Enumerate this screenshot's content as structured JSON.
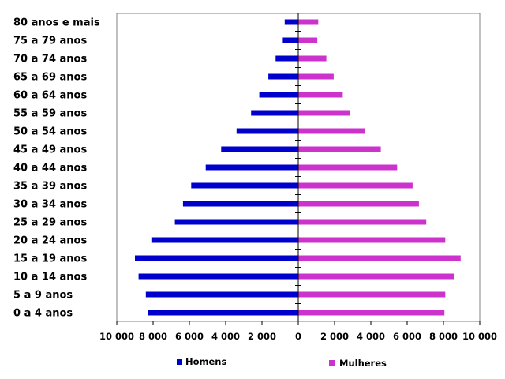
{
  "chart_data": {
    "type": "bar",
    "orientation": "horizontal-pyramid",
    "categories": [
      "0 a 4 anos",
      "5 a 9  anos",
      "10 a 14 anos",
      "15 a 19 anos",
      "20 a 24  anos",
      "25 a 29 anos",
      "30 a 34 anos",
      "35 a 39  anos",
      "40 a 44 anos",
      "45 a 49 anos",
      "50 a 54 anos",
      "55 a 59 anos",
      "60 a 64 anos",
      "65 a 69 anos",
      "70 a 74 anos",
      "75 a 79 anos",
      "80 anos e mais"
    ],
    "series": [
      {
        "name": "Homens",
        "color": "#0000cc",
        "side": "left",
        "values": [
          8300,
          8400,
          8800,
          9000,
          8050,
          6800,
          6350,
          5900,
          5100,
          4250,
          3400,
          2600,
          2150,
          1650,
          1250,
          850,
          750
        ]
      },
      {
        "name": "Mulheres",
        "color": "#cc33cc",
        "side": "right",
        "values": [
          8050,
          8100,
          8600,
          8950,
          8100,
          7050,
          6650,
          6300,
          5450,
          4550,
          3650,
          2850,
          2450,
          1950,
          1550,
          1050,
          1100
        ]
      }
    ],
    "xlim": [
      -10000,
      10000
    ],
    "x_ticks": [
      "10 000",
      "8 000",
      "6 000",
      "4 000",
      "2 000",
      "0",
      "2 000",
      "4 000",
      "6 000",
      "8 000",
      "10 000"
    ],
    "grid": false,
    "legend_position": "bottom"
  }
}
